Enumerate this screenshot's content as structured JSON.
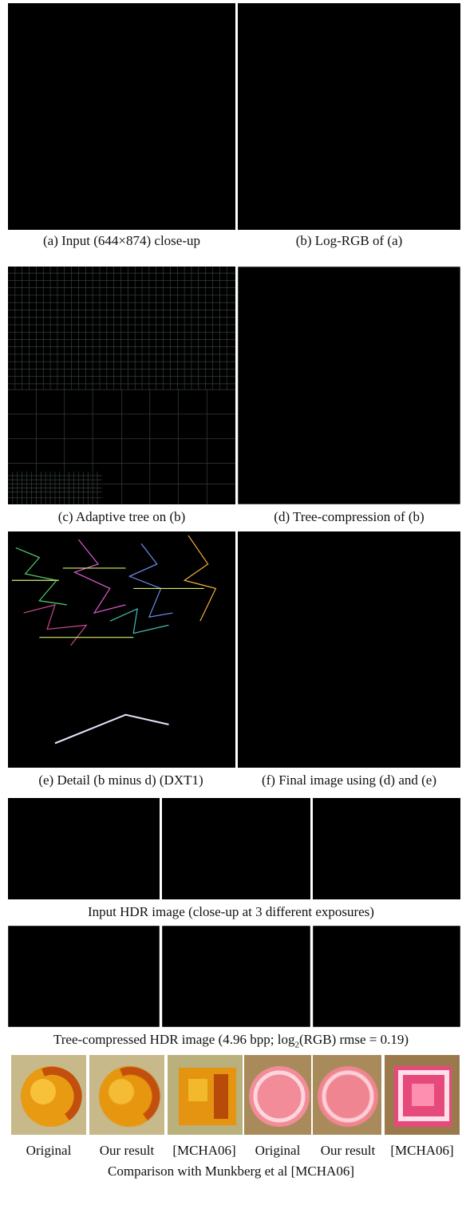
{
  "figure": {
    "captions": {
      "a": "(a) Input (644×874) close-up",
      "b": "(b) Log-RGB of (a)",
      "c": "(c) Adaptive tree on (b)",
      "d": "(d) Tree-compression of (b)",
      "e": "(e) Detail (b minus d) (DXT1)",
      "f": "(f) Final image using (d) and (e)"
    },
    "row_input_hdr": "Input HDR image (close-up at 3 different exposures)",
    "row_tree_hdr": {
      "prefix": "Tree-compressed HDR image (4.96 bpp; log",
      "sub": "2",
      "suffix": "(RGB) rmse = 0.19)"
    },
    "comparison_labels": [
      "Original",
      "Our result",
      "[MCHA06]",
      "Original",
      "Our result",
      "[MCHA06]"
    ],
    "comparison_caption": "Comparison with Munkberg et al [MCHA06]"
  },
  "colors": {
    "background": "#ffffff",
    "text": "#111111"
  }
}
